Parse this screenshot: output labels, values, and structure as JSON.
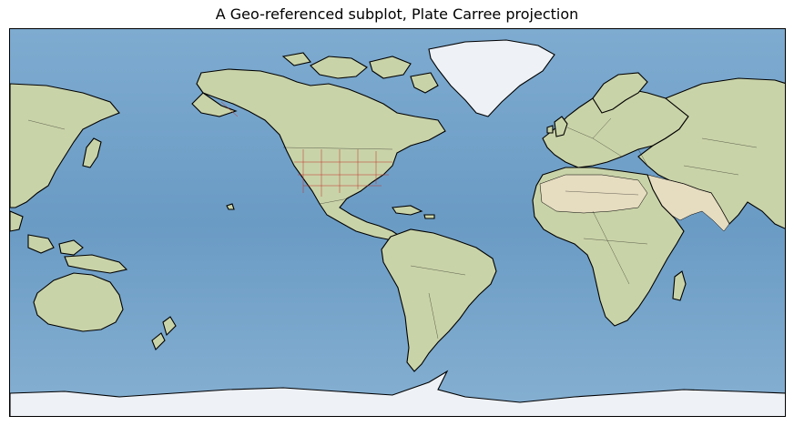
{
  "figure": {
    "title": "A Geo-referenced subplot, Plate Carree projection"
  },
  "map": {
    "projection": "Plate Carree",
    "extent": {
      "lon": [
        -180,
        180
      ],
      "lat": [
        -90,
        90
      ]
    },
    "colors": {
      "ocean": "#6f9fc6",
      "land": "#c9d3a8",
      "desert": "#e6dcc0",
      "forest": "#9fb48a",
      "ice": "#eef2f7",
      "coastline": "#000000",
      "borders": "#000000",
      "states": "#c03028"
    }
  }
}
